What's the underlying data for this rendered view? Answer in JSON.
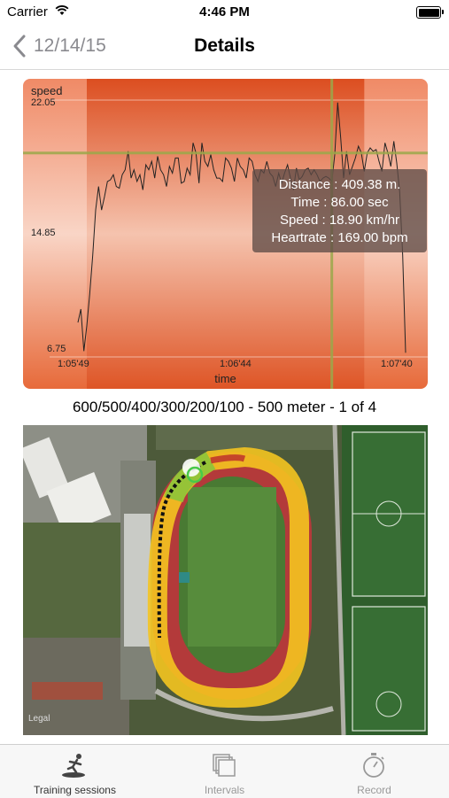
{
  "status_bar": {
    "carrier": "Carrier",
    "time": "4:46 PM"
  },
  "nav": {
    "back_label": "12/14/15",
    "title": "Details"
  },
  "chart_data": {
    "type": "line",
    "ylabel": "speed",
    "xlabel": "time",
    "y_ticks": [
      "22.05",
      "14.85",
      "6.75"
    ],
    "x_ticks": [
      "1:05'49",
      "1:06'44",
      "1:07'40"
    ],
    "ylim": [
      6.75,
      22.05
    ],
    "xlim": [
      0,
      111
    ],
    "highlight_range": [
      3,
      97
    ],
    "crosshair": {
      "x": 86,
      "y": 18.9
    },
    "grid": false,
    "series": [
      {
        "x": [
          0,
          1,
          2,
          3,
          4,
          5,
          6,
          7,
          8,
          9,
          10,
          11,
          12,
          13,
          14,
          15,
          16,
          17,
          18,
          19,
          20,
          21,
          22,
          23,
          24,
          25,
          26,
          27,
          28,
          29,
          30,
          31,
          32,
          33,
          34,
          35,
          36,
          37,
          38,
          39,
          40,
          41,
          42,
          43,
          44,
          45,
          46,
          47,
          48,
          49,
          50,
          51,
          52,
          53,
          54,
          55,
          56,
          57,
          58,
          59,
          60,
          61,
          62,
          63,
          64,
          65,
          66,
          67,
          68,
          69,
          70,
          71,
          72,
          73,
          74,
          75,
          76,
          77,
          78,
          79,
          80,
          81,
          82,
          83,
          84,
          85,
          86,
          87,
          88,
          89,
          90,
          91,
          92,
          93,
          94,
          95,
          96,
          97,
          98,
          99,
          100,
          101,
          102,
          103,
          104,
          105,
          106,
          107,
          108,
          109,
          110,
          111
        ],
        "y": [
          8.8,
          9.6,
          7.1,
          8.6,
          10.5,
          12.8,
          15.5,
          16.9,
          15.5,
          16.3,
          17.2,
          17.3,
          17.6,
          16.9,
          16.8,
          17.6,
          17.9,
          19.0,
          17.4,
          17.9,
          17.2,
          17.6,
          16.7,
          18.2,
          17.9,
          18.4,
          17.4,
          18.7,
          17.9,
          17.6,
          16.9,
          18.1,
          17.7,
          18.6,
          18.6,
          17.1,
          17.2,
          18.0,
          17.6,
          19.5,
          18.9,
          17.1,
          19.5,
          18.4,
          18.1,
          18.8,
          17.9,
          17.4,
          17.4,
          17.2,
          18.6,
          18.4,
          18.0,
          17.2,
          18.6,
          18.1,
          17.9,
          17.4,
          18.6,
          18.4,
          17.6,
          17.2,
          17.9,
          17.7,
          18.4,
          17.7,
          17.5,
          16.9,
          17.7,
          17.1,
          17.7,
          18.2,
          17.4,
          16.7,
          18.0,
          17.3,
          17.5,
          17.9,
          18.0,
          17.6,
          17.9,
          17.6,
          17.2,
          17.4,
          17.5,
          17.4,
          17.2,
          18.8,
          21.9,
          19.8,
          17.4,
          19.0,
          17.6,
          18.1,
          18.6,
          19.3,
          18.9,
          17.8,
          18.9,
          19.2,
          19.0,
          19.1,
          18.4,
          17.8,
          19.5,
          18.9,
          18.1,
          19.6,
          18.3,
          16.6,
          12.8,
          7.0
        ]
      }
    ]
  },
  "tooltip": {
    "distance": "Distance : 409.38 m.",
    "time": "Time : 86.00 sec",
    "speed": "Speed : 18.90 km/hr",
    "heartrate": "Heartrate : 169.00 bpm"
  },
  "caption": "600/500/400/300/200/100 - 500 meter - 1 of  4",
  "map": {
    "legal": "Legal"
  },
  "tabs": [
    {
      "label": "Training sessions",
      "icon": "runner-icon",
      "active": true
    },
    {
      "label": "Intervals",
      "icon": "intervals-icon",
      "active": false
    },
    {
      "label": "Record",
      "icon": "stopwatch-icon",
      "active": false
    }
  ],
  "colors": {
    "chart_orange": "#e25a28",
    "crosshair": "#9aa84a",
    "tab_active": "#333333",
    "tab_inactive": "#999999"
  }
}
